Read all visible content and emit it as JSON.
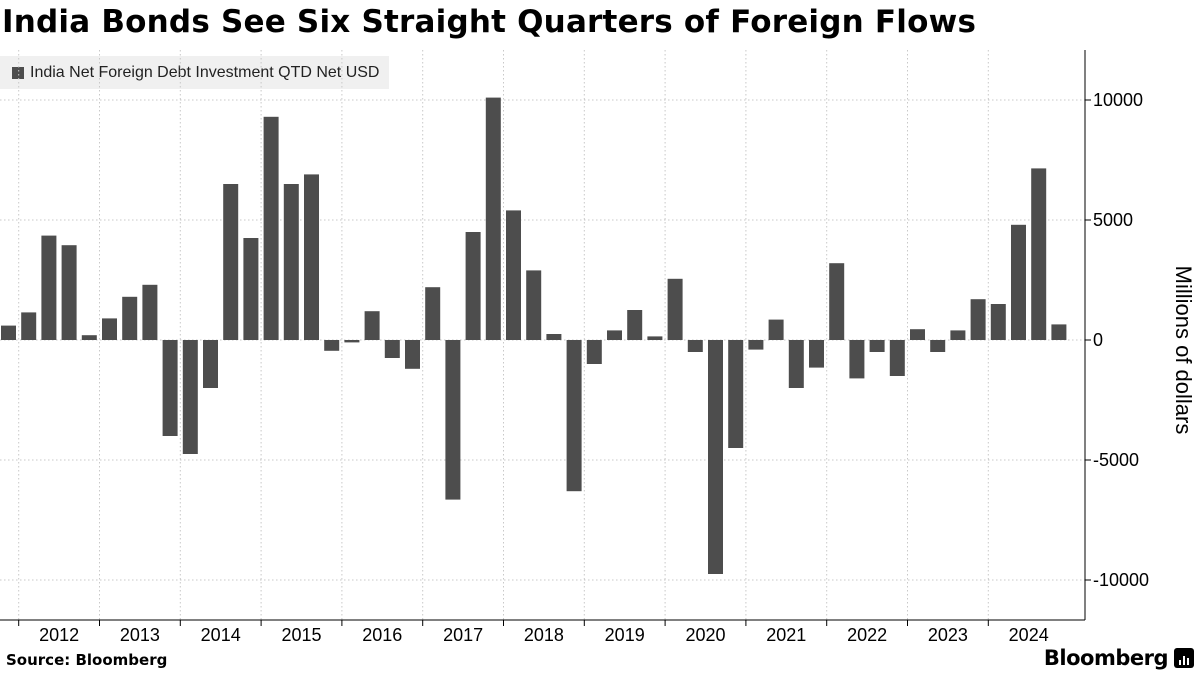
{
  "chart_data": {
    "type": "bar",
    "title": "India Bonds See Six Straight Quarters of Foreign Flows",
    "legend": "India Net Foreign Debt Investment QTD Net USD",
    "ylabel": "Millions of dollars",
    "ylim": [
      -12000,
      12000
    ],
    "yticks": [
      10000,
      5000,
      0,
      -5000,
      -10000
    ],
    "ytick_labels": [
      "10000",
      "5000",
      "0",
      "-5000",
      "-10000"
    ],
    "x_start_year": 2011,
    "year_labels": [
      "2012",
      "2013",
      "2014",
      "2015",
      "2016",
      "2017",
      "2018",
      "2019",
      "2020",
      "2021",
      "2022",
      "2023",
      "2024"
    ],
    "categories": [
      "2011 Q4",
      "2012 Q1",
      "2012 Q2",
      "2012 Q3",
      "2012 Q4",
      "2013 Q1",
      "2013 Q2",
      "2013 Q3",
      "2013 Q4",
      "2014 Q1",
      "2014 Q2",
      "2014 Q3",
      "2014 Q4",
      "2015 Q1",
      "2015 Q2",
      "2015 Q3",
      "2015 Q4",
      "2016 Q1",
      "2016 Q2",
      "2016 Q3",
      "2016 Q4",
      "2017 Q1",
      "2017 Q2",
      "2017 Q3",
      "2017 Q4",
      "2018 Q1",
      "2018 Q2",
      "2018 Q3",
      "2018 Q4",
      "2019 Q1",
      "2019 Q2",
      "2019 Q3",
      "2019 Q4",
      "2020 Q1",
      "2020 Q2",
      "2020 Q3",
      "2020 Q4",
      "2021 Q1",
      "2021 Q2",
      "2021 Q3",
      "2021 Q4",
      "2022 Q1",
      "2022 Q2",
      "2022 Q3",
      "2022 Q4",
      "2023 Q1",
      "2023 Q2",
      "2023 Q3",
      "2023 Q4",
      "2024 Q1",
      "2024 Q2",
      "2024 Q3",
      "2024 Q4"
    ],
    "values": [
      600,
      1150,
      4350,
      3950,
      200,
      900,
      1800,
      2300,
      -4000,
      -4750,
      -2000,
      6500,
      4250,
      9300,
      6500,
      6900,
      -450,
      -100,
      1200,
      -750,
      -1200,
      2200,
      -6650,
      4500,
      10100,
      5400,
      2900,
      250,
      -6300,
      -1000,
      400,
      1250,
      150,
      2550,
      -500,
      -9750,
      -4500,
      -400,
      850,
      -2000,
      -1150,
      3200,
      -1600,
      -500,
      -1500,
      450,
      -500,
      400,
      1700,
      1500,
      4800,
      7150,
      650
    ],
    "grid": true,
    "legend_position": "top-left",
    "bar_color": "#4d4d4d"
  },
  "footer": {
    "source": "Source: Bloomberg",
    "brand": "Bloomberg"
  }
}
